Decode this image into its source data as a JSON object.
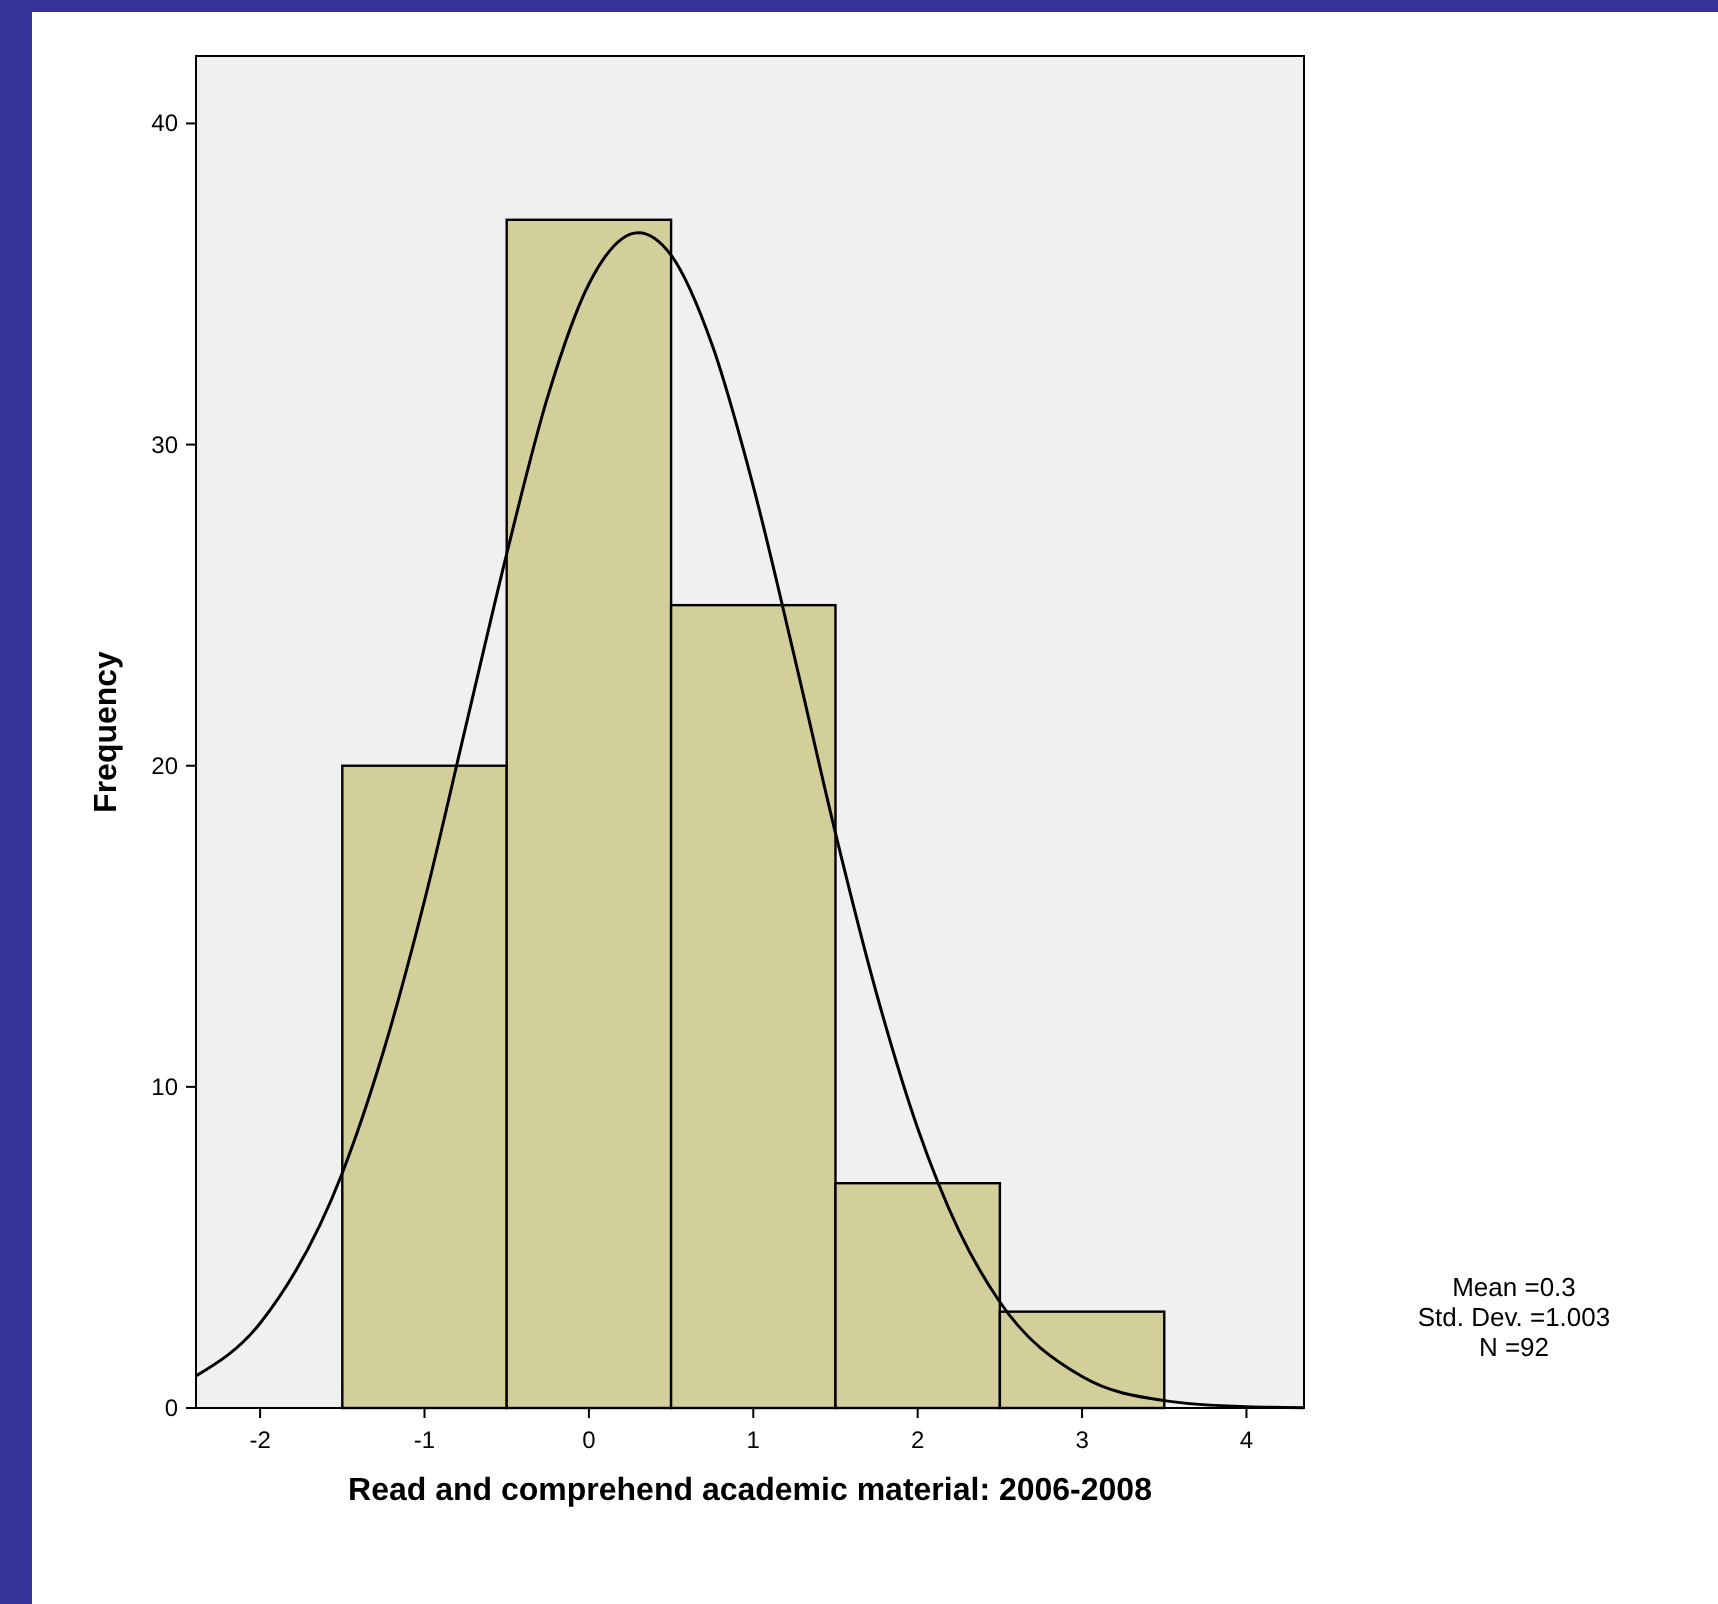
{
  "chart_data": {
    "type": "histogram",
    "xlabel": "Read and comprehend academic material: 2006-2008",
    "ylabel": "Frequency",
    "xlim": [
      -2.39,
      4.35
    ],
    "xticks": [
      -2,
      -1,
      0,
      1,
      2,
      3,
      4
    ],
    "ylim": [
      0,
      42.1
    ],
    "yticks": [
      0,
      10,
      20,
      30,
      40
    ],
    "grid": false,
    "series": [
      {
        "bins": [
          -1.5,
          -0.5,
          0.5,
          1.5,
          2.5,
          3.5
        ],
        "values": [
          20,
          37,
          25,
          7,
          3
        ],
        "color": "#d3cf9b"
      },
      {
        "type": "line",
        "color": "#000000",
        "x": [
          -2.39,
          -2,
          -1.5,
          -1.25,
          -1,
          -0.75,
          -0.5,
          -0.25,
          0,
          0.3,
          0.5,
          0.75,
          1,
          1.25,
          1.5,
          1.75,
          2,
          2.25,
          2.5,
          3,
          3.5,
          4,
          4.35
        ],
        "values": [
          1.0,
          2.64,
          7.32,
          11.1,
          15.8,
          21.2,
          26.6,
          31.5,
          35.0,
          36.6,
          35.9,
          33.1,
          28.7,
          23.4,
          17.9,
          12.9,
          8.71,
          5.53,
          3.3,
          0.98,
          0.23,
          0.04,
          0.01
        ]
      }
    ],
    "annotations": [
      "Mean =0.3",
      "Std. Dev. =1.003",
      "N =92"
    ]
  }
}
